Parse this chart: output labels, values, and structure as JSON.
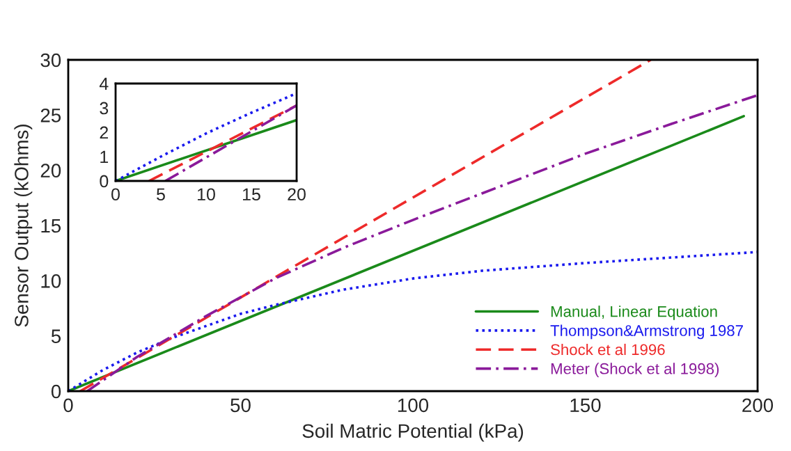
{
  "chart_data": [
    {
      "type": "line",
      "xlabel": "Soil Matric Potential (kPa)",
      "ylabel": "Sensor Output (kOhms)",
      "xlim": [
        0,
        200
      ],
      "ylim": [
        0,
        30
      ],
      "xticks": [
        0,
        50,
        100,
        150,
        200
      ],
      "yticks": [
        0,
        5,
        10,
        15,
        20,
        25,
        30
      ],
      "legend": "bottom right",
      "grid": false,
      "series": [
        {
          "name": "Manual, Linear Equation",
          "color": "#1a8a1a",
          "line_style": "solid",
          "x": [
            0,
            196
          ],
          "values": [
            0,
            24.9
          ]
        },
        {
          "name": "Thompson&Armstrong 1987",
          "color": "#1a1aee",
          "line_style": "dotted",
          "x": [
            0,
            10,
            20,
            30,
            40,
            50,
            60,
            80,
            100,
            120,
            150,
            175,
            200
          ],
          "values": [
            0,
            1.9,
            3.5,
            4.8,
            5.9,
            7,
            7.8,
            9.2,
            10.2,
            10.9,
            11.6,
            12.1,
            12.6
          ]
        },
        {
          "name": "Shock et al 1996",
          "color": "#ee2a2a",
          "line_style": "dashed",
          "x": [
            3.5,
            20,
            60,
            169
          ],
          "values": [
            0,
            3,
            10.3,
            30
          ]
        },
        {
          "name": "Meter (Shock et al 1998)",
          "color": "#8a1a9a",
          "line_style": "dashdot",
          "x": [
            5.5,
            20,
            40,
            60,
            80,
            100,
            120,
            150,
            175,
            200
          ],
          "values": [
            0,
            3.1,
            6.8,
            10.2,
            13,
            15.5,
            17.9,
            21.5,
            24.2,
            26.8
          ]
        }
      ]
    },
    {
      "type": "line",
      "xlim": [
        0,
        20
      ],
      "ylim": [
        0,
        4
      ],
      "xticks": [
        0,
        5,
        10,
        15,
        20
      ],
      "yticks": [
        0,
        1,
        2,
        3,
        4
      ],
      "grid": false,
      "series": [
        {
          "color": "#1a8a1a",
          "line_style": "solid",
          "x": [
            0,
            20
          ],
          "values": [
            0,
            2.5
          ]
        },
        {
          "color": "#1a1aee",
          "line_style": "dotted",
          "x": [
            0,
            5,
            10,
            15,
            20
          ],
          "values": [
            0,
            1.0,
            1.95,
            2.8,
            3.6
          ]
        },
        {
          "color": "#ee2a2a",
          "line_style": "dashed",
          "x": [
            3.7,
            20
          ],
          "values": [
            0,
            3.1
          ]
        },
        {
          "color": "#8a1a9a",
          "line_style": "dashdot",
          "x": [
            5.5,
            20
          ],
          "values": [
            0,
            3.1
          ]
        }
      ]
    }
  ]
}
